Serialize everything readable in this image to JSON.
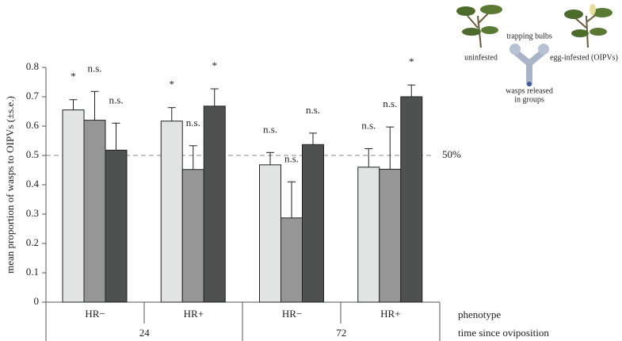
{
  "chart_data": {
    "type": "bar",
    "ylabel": "mean proportion of wasps to OIPVs (±s.e.)",
    "ylim": [
      0,
      0.8
    ],
    "yticks": [
      0,
      0.1,
      0.2,
      0.3,
      0.4,
      0.5,
      0.6,
      0.7,
      0.8
    ],
    "categories": [
      "HR−",
      "HR+",
      "HR−",
      "HR+"
    ],
    "time_groups": [
      "24",
      "72"
    ],
    "row_labels": [
      "phenotype",
      "time since oviposition"
    ],
    "series": [
      {
        "color": "#e2e4e3",
        "values": [
          0.655,
          0.617,
          0.468,
          0.46
        ],
        "errors": [
          0.035,
          0.046,
          0.042,
          0.063
        ],
        "significance": [
          "*",
          "*",
          "n.s.",
          "n.s."
        ]
      },
      {
        "color": "#959695",
        "values": [
          0.62,
          0.452,
          0.287,
          0.453
        ],
        "errors": [
          0.098,
          0.081,
          0.123,
          0.144
        ],
        "significance": [
          "n.s.",
          "n.s.",
          "n.s.",
          "n.s."
        ]
      },
      {
        "color": "#4f5150",
        "values": [
          0.518,
          0.668,
          0.537,
          0.7
        ],
        "errors": [
          0.092,
          0.059,
          0.039,
          0.04
        ],
        "significance": [
          "n.s.",
          "*",
          "n.s.",
          "*"
        ]
      }
    ],
    "reference_line": {
      "value": 0.5,
      "label": "50%"
    },
    "inset": {
      "left": "uninfested",
      "top": "trapping bulbs",
      "right": "egg-infested (OIPVs)",
      "bottom": [
        "wasps released",
        "in groups"
      ]
    }
  }
}
